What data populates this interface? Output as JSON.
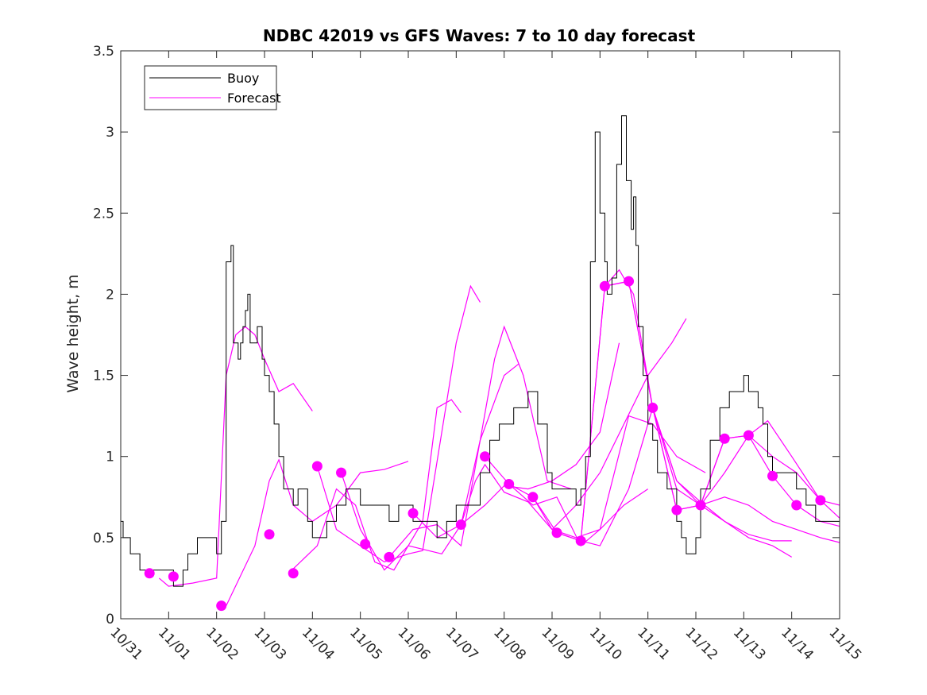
{
  "chart_data": {
    "type": "line",
    "title": "NDBC 42019 vs GFS Waves: 7 to 10 day forecast",
    "xlabel": "",
    "ylabel": "Wave height, m",
    "x_unit": "days since 10/31",
    "xlim": [
      0,
      15
    ],
    "ylim": [
      0,
      3.5
    ],
    "yticks": [
      0,
      0.5,
      1,
      1.5,
      2,
      2.5,
      3,
      3.5
    ],
    "ytick_labels": [
      "0",
      "0.5",
      "1",
      "1.5",
      "2",
      "2.5",
      "3",
      "3.5"
    ],
    "xtick_labels": [
      "10/31",
      "11/01",
      "11/02",
      "11/03",
      "11/04",
      "11/05",
      "11/06",
      "11/07",
      "11/08",
      "11/09",
      "11/10",
      "11/11",
      "11/12",
      "11/13",
      "11/14",
      "11/15"
    ],
    "legend": {
      "placement": "top-left",
      "entries": [
        {
          "label": "Buoy",
          "color": "#000000"
        },
        {
          "label": "Forecast",
          "color": "#ff00ff"
        }
      ]
    },
    "colors": {
      "buoy": "#000000",
      "forecast": "#ff00ff"
    },
    "buoy": {
      "name": "Buoy",
      "points": [
        [
          0,
          0.6
        ],
        [
          0.05,
          0.5
        ],
        [
          0.2,
          0.4
        ],
        [
          0.4,
          0.3
        ],
        [
          0.9,
          0.3
        ],
        [
          1.1,
          0.2
        ],
        [
          1.3,
          0.3
        ],
        [
          1.4,
          0.4
        ],
        [
          1.6,
          0.5
        ],
        [
          1.9,
          0.5
        ],
        [
          2.0,
          0.4
        ],
        [
          2.1,
          0.6
        ],
        [
          2.2,
          2.2
        ],
        [
          2.3,
          2.3
        ],
        [
          2.35,
          1.7
        ],
        [
          2.45,
          1.6
        ],
        [
          2.5,
          1.7
        ],
        [
          2.55,
          1.8
        ],
        [
          2.6,
          1.9
        ],
        [
          2.65,
          2.0
        ],
        [
          2.7,
          1.7
        ],
        [
          2.85,
          1.8
        ],
        [
          2.95,
          1.6
        ],
        [
          3.0,
          1.5
        ],
        [
          3.1,
          1.4
        ],
        [
          3.2,
          1.2
        ],
        [
          3.3,
          1.0
        ],
        [
          3.4,
          0.8
        ],
        [
          3.6,
          0.7
        ],
        [
          3.7,
          0.8
        ],
        [
          3.9,
          0.6
        ],
        [
          4.0,
          0.5
        ],
        [
          4.3,
          0.6
        ],
        [
          4.5,
          0.7
        ],
        [
          4.7,
          0.8
        ],
        [
          5.0,
          0.7
        ],
        [
          5.5,
          0.7
        ],
        [
          5.6,
          0.6
        ],
        [
          5.8,
          0.7
        ],
        [
          6.1,
          0.6
        ],
        [
          6.6,
          0.5
        ],
        [
          6.8,
          0.6
        ],
        [
          7.0,
          0.7
        ],
        [
          7.4,
          0.7
        ],
        [
          7.5,
          0.9
        ],
        [
          7.7,
          1.1
        ],
        [
          7.9,
          1.2
        ],
        [
          8.2,
          1.3
        ],
        [
          8.5,
          1.4
        ],
        [
          8.7,
          1.2
        ],
        [
          8.9,
          0.9
        ],
        [
          9.0,
          0.8
        ],
        [
          9.5,
          0.7
        ],
        [
          9.6,
          0.8
        ],
        [
          9.7,
          1.0
        ],
        [
          9.8,
          2.2
        ],
        [
          9.9,
          3.0
        ],
        [
          10.0,
          2.5
        ],
        [
          10.1,
          2.2
        ],
        [
          10.15,
          2.0
        ],
        [
          10.25,
          2.1
        ],
        [
          10.35,
          2.8
        ],
        [
          10.45,
          3.1
        ],
        [
          10.55,
          2.7
        ],
        [
          10.65,
          2.4
        ],
        [
          10.7,
          2.6
        ],
        [
          10.75,
          2.3
        ],
        [
          10.8,
          1.8
        ],
        [
          10.9,
          1.5
        ],
        [
          11.0,
          1.2
        ],
        [
          11.1,
          1.1
        ],
        [
          11.2,
          0.9
        ],
        [
          11.4,
          0.8
        ],
        [
          11.6,
          0.6
        ],
        [
          11.7,
          0.5
        ],
        [
          11.8,
          0.4
        ],
        [
          12.0,
          0.5
        ],
        [
          12.1,
          0.8
        ],
        [
          12.3,
          1.1
        ],
        [
          12.5,
          1.3
        ],
        [
          12.7,
          1.4
        ],
        [
          12.9,
          1.4
        ],
        [
          13.0,
          1.5
        ],
        [
          13.1,
          1.4
        ],
        [
          13.3,
          1.3
        ],
        [
          13.4,
          1.2
        ],
        [
          13.5,
          1.0
        ],
        [
          13.6,
          0.9
        ],
        [
          13.9,
          0.9
        ],
        [
          14.1,
          0.8
        ],
        [
          14.3,
          0.7
        ],
        [
          14.5,
          0.6
        ],
        [
          15.0,
          0.5
        ]
      ]
    },
    "forecasts": [
      {
        "name": "Forecast",
        "points": [
          [
            0.8,
            0.25
          ],
          [
            1.0,
            0.2
          ],
          [
            1.5,
            0.22
          ],
          [
            2.0,
            0.25
          ],
          [
            2.2,
            1.5
          ],
          [
            2.4,
            1.75
          ],
          [
            2.6,
            1.8
          ],
          [
            2.8,
            1.75
          ],
          [
            3.0,
            1.6
          ],
          [
            3.3,
            1.4
          ],
          [
            3.6,
            1.45
          ],
          [
            4.0,
            1.28
          ]
        ]
      },
      {
        "name": "Forecast",
        "points": [
          [
            2.2,
            0.08
          ],
          [
            2.8,
            0.45
          ],
          [
            3.1,
            0.85
          ],
          [
            3.3,
            0.98
          ],
          [
            3.6,
            0.7
          ],
          [
            4.0,
            0.6
          ],
          [
            4.5,
            0.7
          ],
          [
            5.0,
            0.9
          ],
          [
            5.5,
            0.92
          ],
          [
            6.0,
            0.97
          ]
        ]
      },
      {
        "name": "Forecast",
        "points": [
          [
            3.5,
            0.28
          ],
          [
            4.1,
            0.45
          ],
          [
            4.5,
            0.8
          ],
          [
            4.9,
            0.7
          ],
          [
            5.3,
            0.35
          ],
          [
            5.7,
            0.3
          ],
          [
            6.3,
            0.6
          ],
          [
            6.6,
            1.3
          ],
          [
            6.9,
            1.35
          ],
          [
            7.1,
            1.27
          ]
        ]
      },
      {
        "name": "Forecast",
        "points": [
          [
            4.1,
            0.94
          ],
          [
            4.5,
            0.55
          ],
          [
            5.0,
            0.45
          ],
          [
            5.5,
            0.35
          ],
          [
            6.0,
            0.4
          ],
          [
            6.3,
            0.42
          ],
          [
            7.0,
            1.7
          ],
          [
            7.3,
            2.05
          ],
          [
            7.5,
            1.95
          ]
        ]
      },
      {
        "name": "Forecast",
        "points": [
          [
            4.6,
            0.9
          ],
          [
            5.0,
            0.55
          ],
          [
            5.5,
            0.3
          ],
          [
            6.0,
            0.45
          ],
          [
            6.7,
            0.4
          ],
          [
            7.1,
            0.58
          ],
          [
            7.5,
            1.1
          ],
          [
            8.0,
            1.5
          ],
          [
            8.3,
            1.57
          ]
        ]
      },
      {
        "name": "Forecast",
        "points": [
          [
            5.6,
            0.38
          ],
          [
            6.1,
            0.55
          ],
          [
            6.6,
            0.58
          ],
          [
            7.1,
            0.45
          ],
          [
            7.5,
            1.1
          ],
          [
            7.8,
            1.6
          ],
          [
            8.0,
            1.8
          ],
          [
            8.4,
            1.5
          ],
          [
            8.9,
            0.85
          ],
          [
            9.4,
            0.8
          ]
        ]
      },
      {
        "name": "Forecast",
        "points": [
          [
            6.1,
            0.65
          ],
          [
            6.6,
            0.5
          ],
          [
            7.1,
            0.58
          ],
          [
            7.6,
            0.7
          ],
          [
            8.0,
            0.82
          ],
          [
            8.5,
            0.8
          ],
          [
            9.0,
            0.85
          ],
          [
            9.5,
            0.95
          ],
          [
            10.0,
            1.15
          ],
          [
            10.4,
            1.7
          ]
        ]
      },
      {
        "name": "Forecast",
        "points": [
          [
            7.1,
            0.58
          ],
          [
            7.4,
            0.85
          ],
          [
            7.6,
            0.95
          ],
          [
            8.0,
            0.78
          ],
          [
            8.5,
            0.72
          ],
          [
            9.0,
            0.55
          ],
          [
            9.5,
            0.5
          ],
          [
            10.0,
            0.55
          ],
          [
            10.5,
            0.7
          ],
          [
            11.0,
            0.8
          ]
        ]
      },
      {
        "name": "Forecast",
        "points": [
          [
            7.6,
            1.0
          ],
          [
            8.1,
            0.83
          ],
          [
            8.6,
            0.75
          ],
          [
            9.0,
            0.55
          ],
          [
            9.5,
            0.7
          ],
          [
            10.0,
            0.9
          ],
          [
            10.5,
            1.2
          ],
          [
            11.0,
            1.5
          ],
          [
            11.5,
            1.7
          ],
          [
            11.8,
            1.85
          ]
        ]
      },
      {
        "name": "Forecast",
        "points": [
          [
            8.1,
            0.83
          ],
          [
            8.6,
            0.7
          ],
          [
            9.1,
            0.75
          ],
          [
            9.6,
            0.45
          ],
          [
            10.0,
            0.55
          ],
          [
            10.6,
            1.25
          ],
          [
            11.1,
            1.2
          ],
          [
            11.6,
            1.0
          ],
          [
            12.2,
            0.9
          ]
        ]
      },
      {
        "name": "Forecast",
        "points": [
          [
            8.6,
            0.75
          ],
          [
            9.1,
            0.53
          ],
          [
            9.6,
            0.48
          ],
          [
            10.1,
            2.05
          ],
          [
            10.4,
            2.15
          ],
          [
            10.7,
            2.0
          ],
          [
            11.1,
            1.3
          ],
          [
            11.6,
            0.85
          ],
          [
            12.1,
            0.7
          ],
          [
            12.6,
            0.6
          ],
          [
            13.1,
            0.5
          ],
          [
            13.6,
            0.45
          ],
          [
            14.0,
            0.38
          ]
        ]
      },
      {
        "name": "Forecast",
        "points": [
          [
            9.1,
            0.53
          ],
          [
            9.6,
            0.48
          ],
          [
            10.1,
            2.05
          ],
          [
            10.6,
            2.08
          ],
          [
            11.1,
            1.3
          ],
          [
            11.6,
            0.85
          ],
          [
            12.1,
            0.72
          ],
          [
            12.6,
            0.6
          ],
          [
            13.1,
            0.52
          ],
          [
            13.6,
            0.48
          ],
          [
            14.0,
            0.48
          ]
        ]
      },
      {
        "name": "Forecast",
        "points": [
          [
            9.6,
            0.48
          ],
          [
            10.0,
            0.45
          ],
          [
            10.6,
            0.8
          ],
          [
            11.1,
            1.3
          ],
          [
            11.6,
            0.67
          ],
          [
            12.1,
            0.7
          ],
          [
            12.6,
            0.75
          ],
          [
            13.1,
            0.7
          ],
          [
            13.6,
            0.6
          ],
          [
            14.1,
            0.55
          ],
          [
            14.6,
            0.5
          ],
          [
            15.0,
            0.47
          ]
        ]
      },
      {
        "name": "Forecast",
        "points": [
          [
            10.1,
            2.05
          ],
          [
            10.6,
            2.08
          ],
          [
            11.1,
            1.3
          ],
          [
            11.6,
            0.8
          ],
          [
            12.1,
            0.7
          ],
          [
            12.6,
            0.9
          ],
          [
            13.1,
            1.13
          ],
          [
            13.6,
            0.88
          ],
          [
            14.1,
            0.7
          ],
          [
            14.6,
            0.6
          ],
          [
            15.0,
            0.57
          ]
        ]
      },
      {
        "name": "Forecast",
        "points": [
          [
            11.1,
            1.3
          ],
          [
            11.6,
            0.67
          ],
          [
            12.1,
            0.7
          ],
          [
            12.6,
            1.11
          ],
          [
            13.1,
            1.13
          ],
          [
            13.6,
            1.0
          ],
          [
            14.1,
            0.9
          ],
          [
            14.6,
            0.73
          ],
          [
            15.0,
            0.62
          ]
        ]
      },
      {
        "name": "Forecast",
        "points": [
          [
            12.1,
            0.7
          ],
          [
            12.6,
            1.11
          ],
          [
            13.1,
            1.13
          ],
          [
            13.5,
            1.22
          ],
          [
            14.0,
            1.0
          ],
          [
            14.6,
            0.73
          ],
          [
            15.0,
            0.7
          ]
        ]
      }
    ],
    "forecast_markers": [
      [
        0.6,
        0.28
      ],
      [
        1.1,
        0.26
      ],
      [
        2.1,
        0.08
      ],
      [
        3.1,
        0.52
      ],
      [
        3.6,
        0.28
      ],
      [
        4.1,
        0.94
      ],
      [
        4.6,
        0.9
      ],
      [
        5.1,
        0.46
      ],
      [
        5.6,
        0.38
      ],
      [
        6.1,
        0.65
      ],
      [
        7.1,
        0.58
      ],
      [
        7.6,
        1.0
      ],
      [
        8.1,
        0.83
      ],
      [
        8.6,
        0.75
      ],
      [
        9.1,
        0.53
      ],
      [
        9.6,
        0.48
      ],
      [
        10.1,
        2.05
      ],
      [
        10.6,
        2.08
      ],
      [
        11.1,
        1.3
      ],
      [
        11.6,
        0.67
      ],
      [
        12.1,
        0.7
      ],
      [
        12.6,
        1.11
      ],
      [
        13.1,
        1.13
      ],
      [
        13.6,
        0.88
      ],
      [
        14.1,
        0.7
      ],
      [
        14.6,
        0.73
      ]
    ]
  }
}
